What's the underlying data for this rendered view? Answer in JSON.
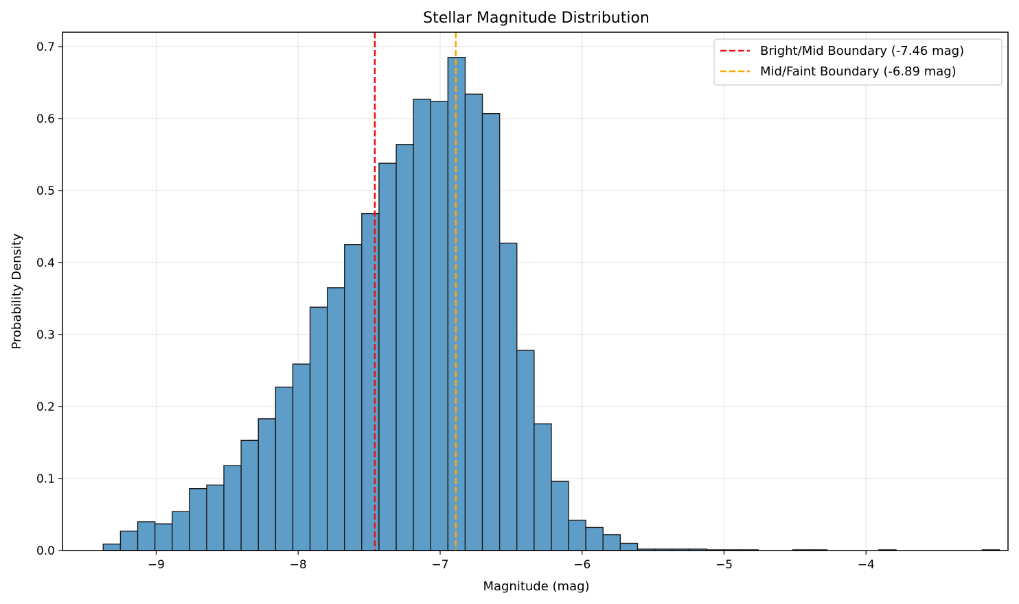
{
  "chart_data": {
    "type": "bar",
    "title": "Stellar Magnitude Distribution",
    "xlabel": "Magnitude (mag)",
    "ylabel": "Probability Density",
    "xlim": [
      -9.66,
      -3.0
    ],
    "ylim": [
      0,
      0.72
    ],
    "xticks": [
      -9,
      -8,
      -7,
      -6,
      -5,
      -4
    ],
    "xtick_labels": [
      "−9",
      "−8",
      "−7",
      "−6",
      "−5",
      "−4"
    ],
    "yticks": [
      0.0,
      0.1,
      0.2,
      0.3,
      0.4,
      0.5,
      0.6,
      0.7
    ],
    "ytick_labels": [
      "0.0",
      "0.1",
      "0.2",
      "0.3",
      "0.4",
      "0.5",
      "0.6",
      "0.7"
    ],
    "grid": true,
    "bin_start": -9.373,
    "bin_width": 0.1214,
    "values": [
      0.009,
      0.027,
      0.04,
      0.037,
      0.054,
      0.086,
      0.091,
      0.118,
      0.153,
      0.183,
      0.227,
      0.259,
      0.338,
      0.365,
      0.425,
      0.468,
      0.538,
      0.564,
      0.627,
      0.624,
      0.685,
      0.634,
      0.607,
      0.427,
      0.278,
      0.176,
      0.096,
      0.042,
      0.032,
      0.022,
      0.01,
      0.002,
      0.002,
      0.002,
      0.002,
      0.001,
      0.001,
      0.001,
      0.0,
      0.0,
      0.001,
      0.001,
      0.0,
      0.0,
      0.0,
      0.001,
      0.0,
      0.0,
      0.0,
      0.0,
      0.0,
      0.001
    ],
    "bar_color": "#5f9dc9",
    "bar_edge_color": "#1a1a1a",
    "lines": [
      {
        "x": -7.46,
        "color": "#ee1111",
        "label": "Bright/Mid Boundary (-7.46 mag)"
      },
      {
        "x": -6.89,
        "color": "#ffa500",
        "label": "Mid/Faint Boundary (-6.89 mag)"
      }
    ],
    "legend_position": "top-right"
  }
}
